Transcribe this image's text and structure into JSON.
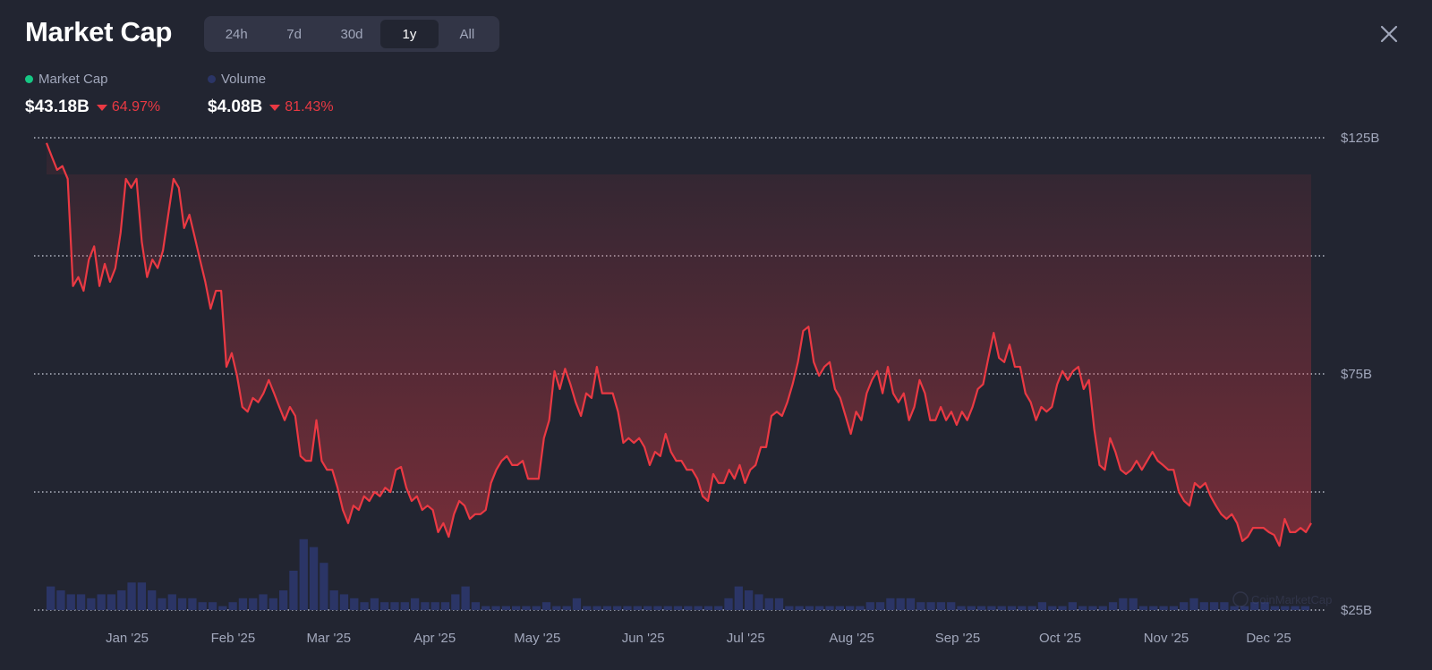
{
  "header": {
    "title": "Market Cap",
    "ranges": [
      "24h",
      "7d",
      "30d",
      "1y",
      "All"
    ],
    "active_range": "1y"
  },
  "legend": {
    "market_cap": {
      "label": "Market Cap",
      "value": "$43.18B",
      "change": "64.97%",
      "dot_color": "#16c784"
    },
    "volume": {
      "label": "Volume",
      "value": "$4.08B",
      "change": "81.43%",
      "dot_color": "#2b3566"
    }
  },
  "colors": {
    "line": "#ea3943",
    "volume": "#2b3566",
    "background": "#222531"
  },
  "watermark": "CoinMarketCap",
  "chart_data": {
    "type": "line",
    "title": "Market Cap",
    "x_unit": "days since start (evenly spaced samples)",
    "x_range_days": [
      0,
      370
    ],
    "ylim": [
      25,
      125
    ],
    "yticks": [
      25,
      50,
      75,
      100,
      125
    ],
    "ytick_labels": {
      "125": "$125B",
      "75": "$75B",
      "25": "$25B"
    },
    "xtick_labels": [
      "Jan '25",
      "Feb '25",
      "Mar '25",
      "Apr '25",
      "May '25",
      "Jun '25",
      "Jul '25",
      "Aug '25",
      "Sep '25",
      "Oct '25",
      "Nov '25",
      "Dec '25"
    ],
    "xtick_days": [
      22,
      53,
      81,
      112,
      142,
      173,
      203,
      234,
      265,
      295,
      326,
      356
    ],
    "grid": true,
    "series": [
      {
        "name": "Market Cap",
        "unit": "$B",
        "values": [
          123.9,
          121,
          118.2,
          119,
          116.3,
          93.6,
          95.5,
          92.6,
          99.2,
          102,
          93.6,
          98.3,
          94.5,
          97.4,
          104.9,
          116.3,
          114.4,
          116.3,
          103,
          95.5,
          99.2,
          97.4,
          101.1,
          108.7,
          116.3,
          114.4,
          105.9,
          108.7,
          104,
          99.2,
          94.5,
          88.8,
          92.6,
          92.6,
          76.5,
          79.4,
          74.6,
          68,
          67,
          69.9,
          69,
          70.9,
          73.7,
          70.9,
          68,
          65.2,
          68,
          66.1,
          57.6,
          56.6,
          56.6,
          65.2,
          56.6,
          54.7,
          54.7,
          50.9,
          46.2,
          43.4,
          47.1,
          46.2,
          49.1,
          48.1,
          50,
          49.1,
          50.9,
          50,
          54.7,
          55.3,
          50.9,
          48.1,
          49.1,
          46.2,
          47.1,
          46.2,
          41.5,
          43.4,
          40.5,
          45.3,
          48.1,
          47.1,
          44.3,
          45.3,
          45.3,
          46.2,
          51.9,
          54.7,
          56.6,
          57.6,
          55.7,
          55.7,
          56.6,
          52.8,
          52.8,
          52.8,
          61.4,
          65.2,
          75.6,
          71.8,
          76.1,
          72.8,
          69,
          66.1,
          70.9,
          69.9,
          76.5,
          70.9,
          70.9,
          70.9,
          67,
          60.4,
          61.4,
          60.4,
          61.4,
          59.5,
          55.7,
          58.5,
          57.6,
          62.3,
          58.5,
          56.6,
          56.6,
          54.7,
          54.7,
          52.8,
          49.1,
          48.1,
          53.8,
          51.9,
          51.9,
          54.7,
          52.8,
          55.7,
          51.9,
          54.7,
          55.7,
          59.5,
          59.5,
          66.1,
          67,
          66.1,
          69,
          72.8,
          77.5,
          84.1,
          85,
          77.5,
          74.6,
          76.5,
          77.5,
          71.8,
          69.9,
          66.1,
          62.3,
          67,
          65.2,
          70.9,
          73.7,
          75.6,
          70.9,
          76.5,
          70.9,
          69,
          70.9,
          65.2,
          68,
          73.7,
          70.9,
          65.2,
          65.2,
          68,
          65.2,
          67,
          64.2,
          67,
          65.2,
          68,
          71.8,
          72.8,
          78.4,
          83.7,
          78.4,
          77.5,
          81.2,
          76.5,
          76.5,
          70.9,
          69,
          65.2,
          68,
          67,
          68,
          72.8,
          75.6,
          73.7,
          75.6,
          76.5,
          71.8,
          73.7,
          63.3,
          55.7,
          54.7,
          61.4,
          58.5,
          54.7,
          53.8,
          54.7,
          56.6,
          54.7,
          56.6,
          58.5,
          56.6,
          55.7,
          54.7,
          54.7,
          50,
          48.1,
          47.1,
          51.9,
          50.9,
          51.9,
          49.1,
          47.1,
          45.3,
          44.3,
          45.3,
          43.4,
          39.6,
          40.5,
          42.4,
          42.4,
          42.4,
          41.5,
          40.9,
          38.6,
          44.3,
          41.5,
          41.5,
          42.4,
          41.5,
          43.4
        ]
      },
      {
        "name": "Volume",
        "unit": "$B",
        "values": [
          6,
          5,
          4,
          4,
          3,
          4,
          4,
          5,
          7,
          7,
          5,
          3,
          4,
          3,
          3,
          2,
          2,
          1,
          2,
          3,
          3,
          4,
          3,
          5,
          10,
          18,
          16,
          12,
          5,
          4,
          3,
          2,
          3,
          2,
          2,
          2,
          3,
          2,
          2,
          2,
          4,
          6,
          2,
          1,
          1,
          1,
          1,
          1,
          1,
          2,
          1,
          1,
          3,
          1,
          1,
          1,
          1,
          1,
          1,
          1,
          1,
          1,
          1,
          1,
          1,
          1,
          1,
          3,
          6,
          5,
          4,
          3,
          3,
          1,
          1,
          1,
          1,
          1,
          1,
          1,
          1,
          2,
          2,
          3,
          3,
          3,
          2,
          2,
          2,
          2,
          1,
          1,
          1,
          1,
          1,
          1,
          1,
          1,
          2,
          1,
          1,
          2,
          1,
          1,
          1,
          2,
          3,
          3,
          1,
          1,
          1,
          1,
          2,
          3,
          2,
          2,
          2,
          1,
          1,
          2,
          2,
          1,
          1,
          1,
          1
        ]
      }
    ]
  }
}
